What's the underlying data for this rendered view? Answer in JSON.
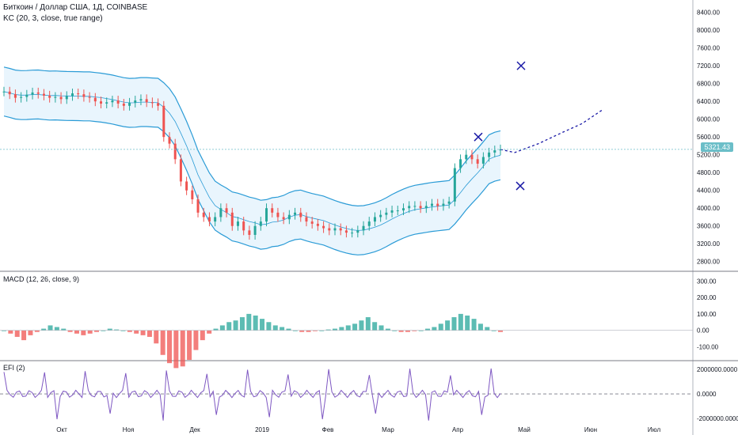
{
  "header": {
    "title": "Биткоин / Доллар США, 1Д, COINBASE",
    "indicator": "KC (20, 3, close, true range)"
  },
  "macd": {
    "label": "MACD (12, 26, close, 9)"
  },
  "efi": {
    "label": "EFI (2)"
  },
  "last_price": "5321.43",
  "colors": {
    "up": "#26a69a",
    "down": "#ef5350",
    "band": "#2a9bd6",
    "band_fill": "#e3f2fd",
    "drawing": "#1a1aa6",
    "macd_line": "#2a9bd6",
    "signal_line": "#ef6c00",
    "efi_line": "#7e57c2"
  },
  "chart_data": [
    {
      "type": "line",
      "name": "price",
      "yticks": [
        "8400.00",
        "8000.00",
        "7600.00",
        "7200.00",
        "6800.00",
        "6400.00",
        "6000.00",
        "5600.00",
        "5200.00",
        "4800.00",
        "4400.00",
        "4000.00",
        "3600.00",
        "3200.00",
        "2800.00"
      ],
      "ylim": [
        2600,
        8500
      ],
      "xticks": [
        "Окт",
        "Ноя",
        "Дек",
        "2019",
        "Фев",
        "Мар",
        "Апр",
        "Май",
        "Июн",
        "Июл"
      ],
      "close": [
        6620,
        6560,
        6480,
        6500,
        6550,
        6600,
        6570,
        6530,
        6480,
        6500,
        6450,
        6520,
        6580,
        6560,
        6500,
        6480,
        6400,
        6350,
        6380,
        6420,
        6350,
        6300,
        6370,
        6420,
        6450,
        6380,
        6360,
        6300,
        5600,
        5450,
        5100,
        4600,
        4400,
        4200,
        3900,
        3800,
        3700,
        3800,
        4000,
        3900,
        3600,
        3700,
        3500,
        3400,
        3600,
        3700,
        4000,
        3900,
        3800,
        3750,
        3850,
        3900,
        3800,
        3700,
        3650,
        3600,
        3550,
        3500,
        3550,
        3500,
        3450,
        3450,
        3500,
        3600,
        3700,
        3800,
        3850,
        3900,
        3950,
        3950,
        4000,
        4050,
        4050,
        4000,
        4050,
        4100,
        4050,
        4100,
        4150,
        4900,
        5100,
        5200,
        5100,
        5000,
        5150,
        5250,
        5300,
        5321
      ],
      "forecast": [
        5321,
        5250,
        5450,
        5700,
        5900,
        6200
      ],
      "markers": [
        [
          5600,
          "x"
        ],
        [
          7200,
          "x"
        ],
        [
          4500,
          "x"
        ]
      ]
    },
    {
      "type": "bar",
      "name": "macd",
      "yticks": [
        "300.00",
        "200.00",
        "100.00",
        "0.00",
        "-100.00"
      ],
      "ylim": [
        -180,
        350
      ],
      "hist": [
        0,
        -20,
        -40,
        -60,
        -30,
        -10,
        10,
        30,
        20,
        10,
        -10,
        -20,
        -30,
        -20,
        -10,
        0,
        10,
        5,
        0,
        -10,
        -20,
        -30,
        -40,
        -80,
        -150,
        -200,
        -230,
        -220,
        -180,
        -120,
        -60,
        -20,
        10,
        30,
        50,
        60,
        80,
        100,
        90,
        70,
        50,
        30,
        20,
        10,
        0,
        -10,
        -10,
        -5,
        0,
        5,
        10,
        20,
        30,
        40,
        60,
        80,
        50,
        30,
        10,
        0,
        -10,
        -10,
        -5,
        0,
        10,
        20,
        40,
        60,
        80,
        100,
        90,
        70,
        40,
        20,
        0,
        -10
      ]
    },
    {
      "type": "line",
      "name": "efi",
      "yticks": [
        "2000000.0000",
        "0.0000",
        "-2000000.0000"
      ],
      "ylim": [
        -2400000,
        2600000
      ]
    }
  ]
}
